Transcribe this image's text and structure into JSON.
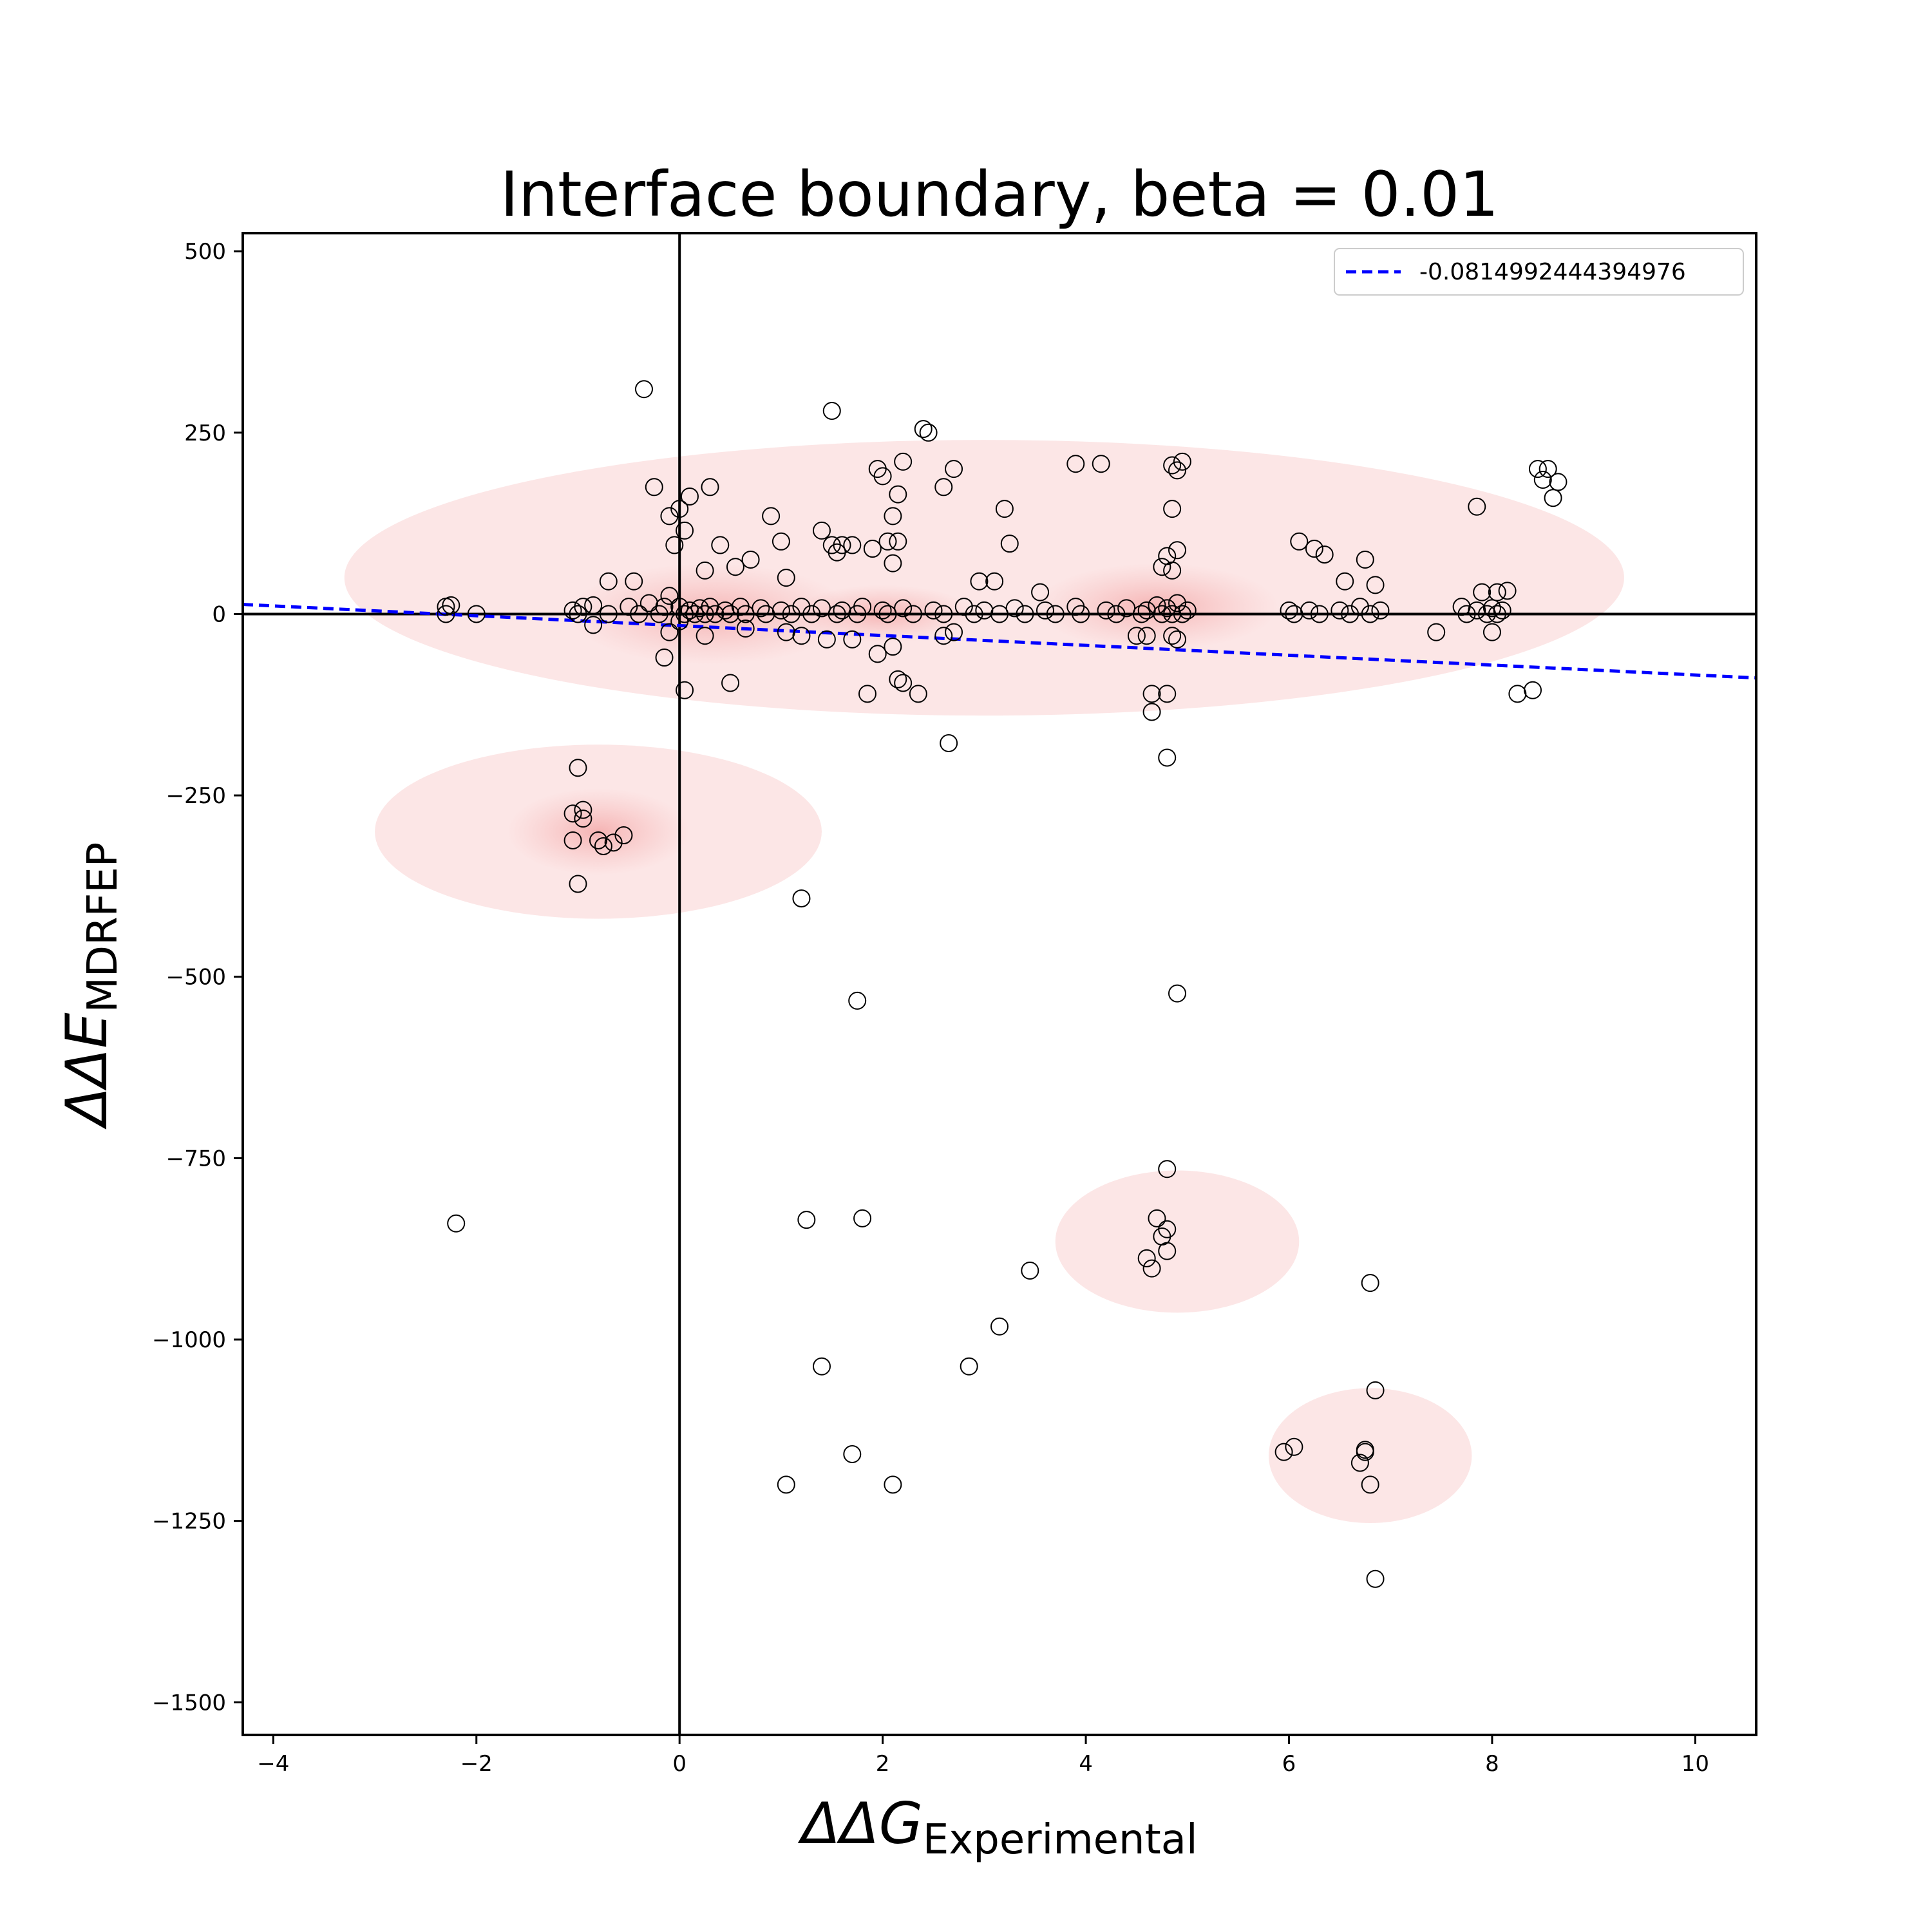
{
  "chart_data": {
    "type": "scatter",
    "title": "Interface boundary, beta = 0.01",
    "xlabel": {
      "symbol": "ΔΔG",
      "subscript": "Experimental"
    },
    "ylabel": {
      "symbol": "ΔΔE",
      "subscript": "MDRFEP"
    },
    "xlim": [
      -4.3,
      10.6
    ],
    "ylim": [
      -1545,
      525
    ],
    "xticks": [
      -4,
      -2,
      0,
      2,
      4,
      6,
      8,
      10
    ],
    "yticks": [
      500,
      250,
      0,
      -250,
      -500,
      -750,
      -1000,
      -1250,
      -1500
    ],
    "xtick_labels": [
      "−4",
      "−2",
      "0",
      "2",
      "4",
      "6",
      "8",
      "10"
    ],
    "ytick_labels": [
      "500",
      "250",
      "0",
      "−250",
      "−500",
      "−750",
      "−1000",
      "−1250",
      "−1500"
    ],
    "grid": false,
    "reference_lines": {
      "x": 0,
      "y": 0
    },
    "legend": {
      "position": "top-right",
      "entries": [
        "-0.0814992444394976"
      ]
    },
    "fit_line": {
      "label": "-0.0814992444394976",
      "slope": -6.8,
      "intercept": -16,
      "color": "#0000ff",
      "style": "dashed"
    },
    "density_color": "#f4a6a6",
    "density_regions": [
      {
        "cx": 3.0,
        "cy": 50,
        "rx": 6.3,
        "ry": 190
      },
      {
        "cx": -0.8,
        "cy": -300,
        "rx": 2.2,
        "ry": 120
      },
      {
        "cx": 4.9,
        "cy": -865,
        "rx": 1.2,
        "ry": 98
      },
      {
        "cx": 6.8,
        "cy": -1160,
        "rx": 1.0,
        "ry": 93
      }
    ],
    "density_cores": [
      {
        "cx": 0.3,
        "cy": 0,
        "rx": 1.4,
        "ry": 70
      },
      {
        "cx": 4.7,
        "cy": 10,
        "rx": 1.2,
        "ry": 60
      },
      {
        "cx": 2.0,
        "cy": 0,
        "rx": 0.9,
        "ry": 40
      },
      {
        "cx": -0.8,
        "cy": -300,
        "rx": 0.9,
        "ry": 60
      }
    ],
    "points": [
      [
        -0.35,
        310
      ],
      [
        1.5,
        280
      ],
      [
        2.4,
        255
      ],
      [
        2.45,
        250
      ],
      [
        1.95,
        200
      ],
      [
        2.0,
        190
      ],
      [
        2.2,
        210
      ],
      [
        2.7,
        200
      ],
      [
        3.9,
        207
      ],
      [
        4.15,
        207
      ],
      [
        4.85,
        205
      ],
      [
        4.9,
        198
      ],
      [
        4.95,
        210
      ],
      [
        8.45,
        200
      ],
      [
        8.55,
        200
      ],
      [
        8.5,
        185
      ],
      [
        8.65,
        182
      ],
      [
        8.6,
        160
      ],
      [
        2.6,
        175
      ],
      [
        -0.25,
        175
      ],
      [
        0.3,
        175
      ],
      [
        0.1,
        162
      ],
      [
        2.15,
        165
      ],
      [
        2.1,
        135
      ],
      [
        3.2,
        145
      ],
      [
        4.85,
        145
      ],
      [
        7.85,
        148
      ],
      [
        -0.1,
        135
      ],
      [
        0.0,
        145
      ],
      [
        0.05,
        115
      ],
      [
        0.9,
        135
      ],
      [
        1.4,
        115
      ],
      [
        0.4,
        95
      ],
      [
        1.0,
        100
      ],
      [
        1.5,
        95
      ],
      [
        1.55,
        85
      ],
      [
        1.6,
        95
      ],
      [
        1.7,
        95
      ],
      [
        1.9,
        90
      ],
      [
        2.05,
        100
      ],
      [
        2.15,
        100
      ],
      [
        3.25,
        97
      ],
      [
        6.1,
        100
      ],
      [
        6.25,
        90
      ],
      [
        6.35,
        82
      ],
      [
        6.75,
        75
      ],
      [
        -0.05,
        95
      ],
      [
        4.8,
        80
      ],
      [
        4.9,
        88
      ],
      [
        0.7,
        75
      ],
      [
        2.1,
        70
      ],
      [
        0.25,
        60
      ],
      [
        0.55,
        65
      ],
      [
        4.75,
        65
      ],
      [
        4.85,
        60
      ],
      [
        6.55,
        45
      ],
      [
        6.85,
        40
      ],
      [
        -0.7,
        45
      ],
      [
        -0.45,
        45
      ],
      [
        2.95,
        45
      ],
      [
        3.1,
        45
      ],
      [
        1.05,
        50
      ],
      [
        3.55,
        30
      ],
      [
        -0.1,
        25
      ],
      [
        7.9,
        30
      ],
      [
        8.05,
        30
      ],
      [
        8.15,
        32
      ],
      [
        -2.3,
        10
      ],
      [
        -2.25,
        12
      ],
      [
        -1.05,
        5
      ],
      [
        -0.95,
        10
      ],
      [
        -0.85,
        12
      ],
      [
        -0.5,
        10
      ],
      [
        -0.3,
        15
      ],
      [
        -0.15,
        10
      ],
      [
        0.0,
        10
      ],
      [
        0.1,
        5
      ],
      [
        0.2,
        8
      ],
      [
        0.3,
        10
      ],
      [
        0.45,
        5
      ],
      [
        0.6,
        10
      ],
      [
        0.8,
        8
      ],
      [
        1.0,
        5
      ],
      [
        1.2,
        10
      ],
      [
        1.4,
        8
      ],
      [
        1.6,
        5
      ],
      [
        1.8,
        10
      ],
      [
        2.0,
        5
      ],
      [
        2.2,
        8
      ],
      [
        2.5,
        5
      ],
      [
        2.8,
        10
      ],
      [
        3.0,
        5
      ],
      [
        3.3,
        8
      ],
      [
        3.6,
        5
      ],
      [
        3.9,
        10
      ],
      [
        4.2,
        5
      ],
      [
        4.4,
        8
      ],
      [
        4.6,
        5
      ],
      [
        4.7,
        12
      ],
      [
        4.8,
        8
      ],
      [
        4.9,
        15
      ],
      [
        5.0,
        5
      ],
      [
        6.0,
        5
      ],
      [
        6.2,
        5
      ],
      [
        6.5,
        5
      ],
      [
        6.7,
        10
      ],
      [
        6.9,
        5
      ],
      [
        7.7,
        10
      ],
      [
        7.85,
        5
      ],
      [
        8.0,
        8
      ],
      [
        8.1,
        5
      ],
      [
        -2.3,
        0
      ],
      [
        -2.0,
        0
      ],
      [
        -1.0,
        0
      ],
      [
        -0.7,
        0
      ],
      [
        -0.4,
        0
      ],
      [
        -0.2,
        0
      ],
      [
        0.05,
        0
      ],
      [
        0.15,
        0
      ],
      [
        0.25,
        0
      ],
      [
        0.35,
        0
      ],
      [
        0.5,
        0
      ],
      [
        0.65,
        0
      ],
      [
        0.85,
        0
      ],
      [
        1.1,
        0
      ],
      [
        1.3,
        0
      ],
      [
        1.55,
        0
      ],
      [
        1.75,
        0
      ],
      [
        2.05,
        0
      ],
      [
        2.3,
        0
      ],
      [
        2.6,
        0
      ],
      [
        2.9,
        0
      ],
      [
        3.15,
        0
      ],
      [
        3.4,
        0
      ],
      [
        3.7,
        0
      ],
      [
        3.95,
        0
      ],
      [
        4.3,
        0
      ],
      [
        4.55,
        0
      ],
      [
        4.75,
        0
      ],
      [
        4.85,
        0
      ],
      [
        4.95,
        0
      ],
      [
        6.05,
        0
      ],
      [
        6.3,
        0
      ],
      [
        6.6,
        0
      ],
      [
        6.8,
        0
      ],
      [
        7.75,
        0
      ],
      [
        7.95,
        0
      ],
      [
        8.05,
        0
      ],
      [
        -0.85,
        -15
      ],
      [
        -0.1,
        -25
      ],
      [
        0.0,
        -10
      ],
      [
        0.25,
        -30
      ],
      [
        0.65,
        -20
      ],
      [
        1.05,
        -25
      ],
      [
        1.2,
        -30
      ],
      [
        1.45,
        -35
      ],
      [
        1.7,
        -35
      ],
      [
        2.6,
        -30
      ],
      [
        2.7,
        -25
      ],
      [
        4.5,
        -30
      ],
      [
        4.6,
        -30
      ],
      [
        4.85,
        -30
      ],
      [
        4.9,
        -35
      ],
      [
        7.45,
        -25
      ],
      [
        8.0,
        -25
      ],
      [
        -0.15,
        -60
      ],
      [
        1.95,
        -55
      ],
      [
        2.1,
        -45
      ],
      [
        0.05,
        -105
      ],
      [
        0.5,
        -95
      ],
      [
        1.85,
        -110
      ],
      [
        2.15,
        -90
      ],
      [
        2.2,
        -95
      ],
      [
        2.35,
        -110
      ],
      [
        4.65,
        -110
      ],
      [
        4.8,
        -110
      ],
      [
        8.25,
        -110
      ],
      [
        8.4,
        -105
      ],
      [
        4.65,
        -135
      ],
      [
        2.65,
        -178
      ],
      [
        4.8,
        -198
      ],
      [
        -1.0,
        -212
      ],
      [
        -1.05,
        -275
      ],
      [
        -0.95,
        -270
      ],
      [
        -0.95,
        -282
      ],
      [
        -1.05,
        -312
      ],
      [
        -0.8,
        -312
      ],
      [
        -0.75,
        -320
      ],
      [
        -0.65,
        -315
      ],
      [
        -0.55,
        -305
      ],
      [
        -1.0,
        -372
      ],
      [
        1.2,
        -392
      ],
      [
        1.75,
        -533
      ],
      [
        4.9,
        -523
      ],
      [
        4.8,
        -765
      ],
      [
        1.25,
        -835
      ],
      [
        1.8,
        -833
      ],
      [
        4.7,
        -833
      ],
      [
        4.8,
        -848
      ],
      [
        4.75,
        -858
      ],
      [
        4.6,
        -888
      ],
      [
        4.65,
        -902
      ],
      [
        4.8,
        -878
      ],
      [
        3.45,
        -905
      ],
      [
        6.8,
        -922
      ],
      [
        3.15,
        -982
      ],
      [
        1.4,
        -1037
      ],
      [
        2.85,
        -1037
      ],
      [
        6.85,
        -1070
      ],
      [
        5.95,
        -1155
      ],
      [
        6.05,
        -1148
      ],
      [
        1.7,
        -1158
      ],
      [
        6.75,
        -1155
      ],
      [
        6.7,
        -1170
      ],
      [
        6.75,
        -1152
      ],
      [
        1.05,
        -1200
      ],
      [
        2.1,
        -1200
      ],
      [
        6.8,
        -1200
      ],
      [
        -2.2,
        -840
      ],
      [
        6.85,
        -1330
      ]
    ]
  }
}
